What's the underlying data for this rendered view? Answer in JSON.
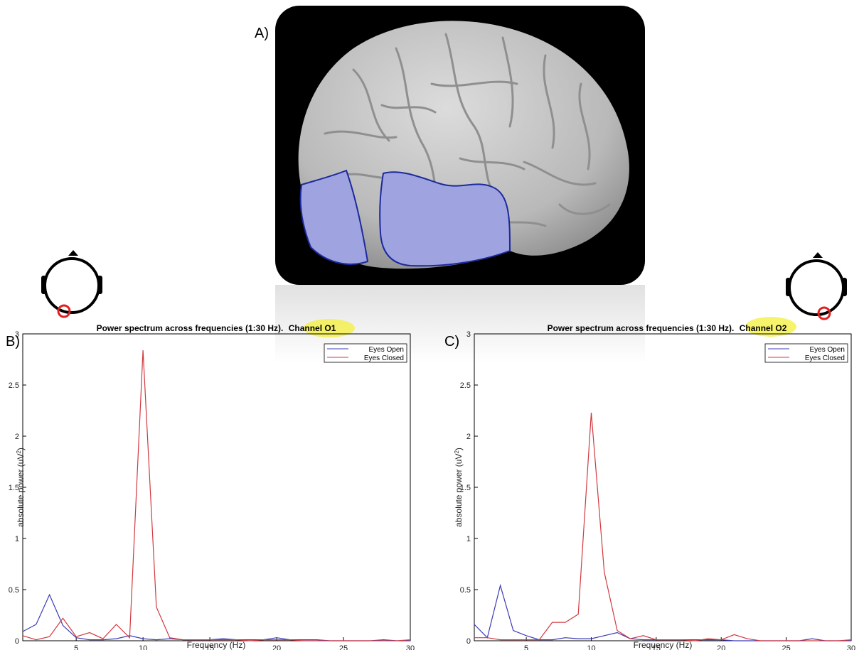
{
  "panels": {
    "a_label": "A)",
    "b_label": "B)",
    "c_label": "C)"
  },
  "colors": {
    "eyes_open": "#3b3bb5",
    "eyes_closed": "#d0393f",
    "highlight": "#f4ef3a",
    "electrode_marker": "#e02020",
    "brain_region": "#9fa3e0"
  },
  "chart_data": [
    {
      "type": "line",
      "title": "Power spectrum across frequencies (1:30 Hz).",
      "title_highlight": "Channel O1",
      "xlabel": "Frequency (Hz)",
      "ylabel": "absolute power (uV",
      "ylabel_sup": "2",
      "ylabel_end": ")",
      "xlim": [
        1,
        30
      ],
      "ylim": [
        0,
        3
      ],
      "xticks": [
        5,
        10,
        15,
        20,
        25,
        30
      ],
      "yticks": [
        0,
        0.5,
        1,
        1.5,
        2,
        2.5,
        3
      ],
      "xtick_labels": [
        "5",
        "10",
        "15",
        "20",
        "25",
        "30"
      ],
      "ytick_labels": [
        "0",
        "0.5",
        "1",
        "1.5",
        "2",
        "2.5",
        "3"
      ],
      "grid": false,
      "legend_position": "top-right",
      "x": [
        1,
        2,
        3,
        4,
        5,
        6,
        7,
        8,
        9,
        10,
        11,
        12,
        13,
        14,
        15,
        16,
        17,
        18,
        19,
        20,
        21,
        22,
        23,
        24,
        25,
        26,
        27,
        28,
        29,
        30
      ],
      "series": [
        {
          "name": "Eyes Open",
          "color": "#3b3bb5",
          "values": [
            0.09,
            0.16,
            0.45,
            0.15,
            0.03,
            0.01,
            0.01,
            0.02,
            0.05,
            0.02,
            0.01,
            0.02,
            0.01,
            0.01,
            0.01,
            0.02,
            0.01,
            0.01,
            0.01,
            0.03,
            0.01,
            0.01,
            0.01,
            0.0,
            0.0,
            0.0,
            0.0,
            0.01,
            0.0,
            0.0
          ]
        },
        {
          "name": "Eyes Closed",
          "color": "#d0393f",
          "values": [
            0.05,
            0.01,
            0.04,
            0.22,
            0.04,
            0.08,
            0.02,
            0.16,
            0.03,
            2.84,
            0.33,
            0.03,
            0.01,
            0.01,
            0.01,
            0.01,
            0.01,
            0.0,
            0.01,
            0.01,
            0.01,
            0.0,
            0.0,
            0.0,
            0.0,
            0.0,
            0.0,
            0.0,
            0.0,
            0.01
          ]
        }
      ]
    },
    {
      "type": "line",
      "title": "Power spectrum across frequencies (1:30 Hz).",
      "title_highlight": "Channel O2",
      "xlabel": "Frequency (Hz)",
      "ylabel": "absolute power (uV",
      "ylabel_sup": "2",
      "ylabel_end": ")",
      "xlim": [
        1,
        30
      ],
      "ylim": [
        0,
        3
      ],
      "xticks": [
        5,
        10,
        15,
        20,
        25,
        30
      ],
      "yticks": [
        0,
        0.5,
        1,
        1.5,
        2,
        2.5,
        3
      ],
      "xtick_labels": [
        "5",
        "10",
        "15",
        "20",
        "25",
        "30"
      ],
      "ytick_labels": [
        "0",
        "0.5",
        "1",
        "1.5",
        "2",
        "2.5",
        "3"
      ],
      "grid": false,
      "legend_position": "top-right",
      "x": [
        1,
        2,
        3,
        4,
        5,
        6,
        7,
        8,
        9,
        10,
        11,
        12,
        13,
        14,
        15,
        16,
        17,
        18,
        19,
        20,
        21,
        22,
        23,
        24,
        25,
        26,
        27,
        28,
        29,
        30
      ],
      "series": [
        {
          "name": "Eyes Open",
          "color": "#3b3bb5",
          "values": [
            0.16,
            0.03,
            0.54,
            0.1,
            0.05,
            0.01,
            0.01,
            0.03,
            0.02,
            0.02,
            0.05,
            0.08,
            0.02,
            0.01,
            0.01,
            0.01,
            0.01,
            0.01,
            0.01,
            0.01,
            0.0,
            0.0,
            0.0,
            0.0,
            0.0,
            0.0,
            0.02,
            0.0,
            0.0,
            0.0
          ]
        },
        {
          "name": "Eyes Closed",
          "color": "#d0393f",
          "values": [
            0.03,
            0.03,
            0.01,
            0.01,
            0.01,
            0.01,
            0.18,
            0.18,
            0.26,
            2.23,
            0.67,
            0.1,
            0.02,
            0.05,
            0.01,
            0.01,
            0.01,
            0.0,
            0.02,
            0.01,
            0.06,
            0.02,
            0.0,
            0.0,
            0.0,
            0.0,
            0.0,
            0.0,
            0.0,
            0.01
          ]
        }
      ]
    }
  ]
}
